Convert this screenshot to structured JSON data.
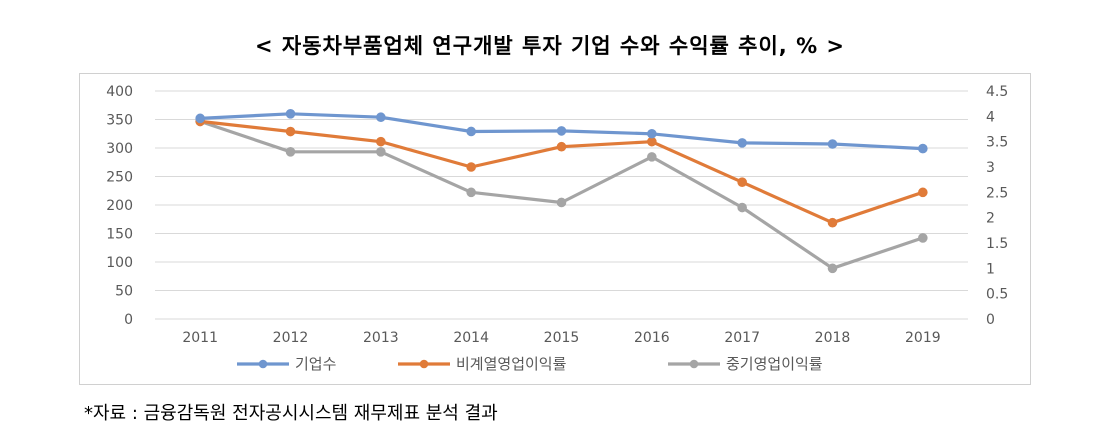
{
  "title": "< 자동차부품업체 연구개발 투자 기업 수와 수익률 추이, % >",
  "source": "*자료 : 금융감독원 전자공시시스템 재무제표 분석 결과",
  "chart_data": {
    "type": "line",
    "title": "< 자동차부품업체 연구개발 투자 기업 수와 수익률 추이, % >",
    "x": [
      "2011",
      "2012",
      "2013",
      "2014",
      "2015",
      "2016",
      "2017",
      "2018",
      "2019"
    ],
    "y_left": {
      "ylim": [
        0,
        400
      ],
      "ticks": [
        "0",
        "50",
        "100",
        "150",
        "200",
        "250",
        "300",
        "350",
        "400"
      ]
    },
    "y_right": {
      "ylim": [
        0,
        4.5
      ],
      "ticks": [
        "0",
        "0.5",
        "1",
        "1.5",
        "2",
        "2.5",
        "3",
        "3.5",
        "4",
        "4.5"
      ]
    },
    "grid": true,
    "legend_position": "bottom",
    "series": [
      {
        "name": "기업수",
        "axis": "left",
        "color": "#6f96cf",
        "values": [
          352,
          360,
          354,
          329,
          330,
          325,
          309,
          307,
          299
        ]
      },
      {
        "name": "비계열영업이익률",
        "axis": "right",
        "color": "#e07b39",
        "values": [
          3.9,
          3.7,
          3.5,
          3.0,
          3.4,
          3.5,
          2.7,
          1.9,
          2.5
        ]
      },
      {
        "name": "중기영업이익률",
        "axis": "right",
        "color": "#a5a5a5",
        "values": [
          3.9,
          3.3,
          3.3,
          2.5,
          2.3,
          3.2,
          2.2,
          1.0,
          1.6
        ]
      }
    ]
  }
}
